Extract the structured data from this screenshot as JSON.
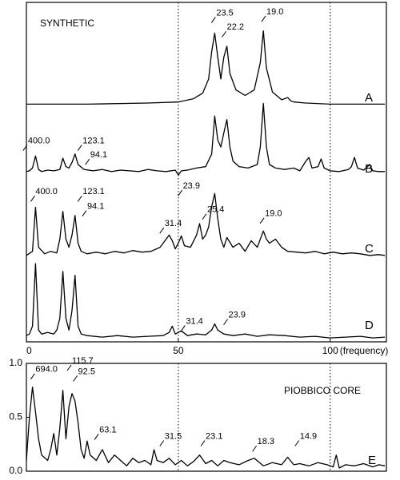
{
  "chart_data": [
    {
      "type": "line",
      "title": "SYNTHETIC",
      "panel_label": "A",
      "color": "#000000",
      "xlim": [
        0,
        118.5
      ],
      "ylim": [
        0,
        1
      ],
      "vlines": [
        50,
        100
      ],
      "x": [
        0,
        20,
        40,
        50,
        55,
        58,
        60,
        61,
        62,
        63,
        64,
        65,
        66,
        67,
        69,
        72,
        75,
        77,
        78,
        79,
        81,
        84,
        86,
        87,
        88,
        92,
        100,
        110,
        118
      ],
      "values": [
        0.07,
        0.07,
        0.08,
        0.09,
        0.12,
        0.17,
        0.3,
        0.55,
        0.72,
        0.5,
        0.3,
        0.5,
        0.6,
        0.35,
        0.2,
        0.15,
        0.2,
        0.45,
        0.74,
        0.4,
        0.18,
        0.11,
        0.13,
        0.1,
        0.09,
        0.08,
        0.07,
        0.07,
        0.07
      ],
      "annotations": [
        {
          "label": "23.5",
          "x": 62.5,
          "y": 0.88
        },
        {
          "label": "22.2",
          "x": 66,
          "y": 0.75
        },
        {
          "label": "19.0",
          "x": 79,
          "y": 0.89
        }
      ]
    },
    {
      "type": "line",
      "panel_label": "B",
      "color": "#000000",
      "xlim": [
        0,
        118.5
      ],
      "ylim": [
        0,
        1
      ],
      "vlines": [
        50,
        100
      ],
      "x": [
        0,
        1,
        2,
        3,
        4,
        5,
        7,
        9,
        11,
        12,
        13,
        14,
        15,
        16,
        17,
        19,
        22,
        25,
        28,
        31,
        34,
        37,
        40,
        43,
        46,
        49,
        50,
        51,
        53,
        56,
        59,
        61,
        62,
        63,
        64,
        65,
        66,
        67,
        68,
        70,
        73,
        76,
        77,
        78,
        79,
        80,
        82,
        85,
        88,
        90,
        92,
        93,
        94,
        96,
        97,
        98,
        100,
        103,
        106,
        107,
        108,
        109,
        111,
        113,
        114,
        116,
        118
      ],
      "values": [
        0.15,
        0.16,
        0.2,
        0.37,
        0.18,
        0.15,
        0.17,
        0.16,
        0.18,
        0.34,
        0.22,
        0.2,
        0.28,
        0.4,
        0.25,
        0.18,
        0.16,
        0.18,
        0.15,
        0.17,
        0.16,
        0.15,
        0.18,
        0.16,
        0.15,
        0.17,
        0.1,
        0.16,
        0.17,
        0.2,
        0.22,
        0.4,
        0.94,
        0.6,
        0.5,
        0.7,
        0.89,
        0.5,
        0.3,
        0.22,
        0.2,
        0.25,
        0.5,
        1.12,
        0.5,
        0.25,
        0.2,
        0.18,
        0.2,
        0.16,
        0.3,
        0.35,
        0.2,
        0.22,
        0.33,
        0.2,
        0.16,
        0.15,
        0.18,
        0.22,
        0.35,
        0.2,
        0.17,
        0.25,
        0.16,
        0.15,
        0.15
      ],
      "annotations": [
        {
          "label": "400.0",
          "x": 0.5,
          "y": 0.55
        },
        {
          "label": "123.1",
          "x": 18.5,
          "y": 0.55
        },
        {
          "label": "94.1",
          "x": 21,
          "y": 0.35
        }
      ]
    },
    {
      "type": "line",
      "panel_label": "C",
      "color": "#000000",
      "xlim": [
        0,
        118.5
      ],
      "ylim": [
        0,
        1
      ],
      "vlines": [
        50,
        100
      ],
      "x": [
        0,
        2,
        3,
        4,
        6,
        8,
        10,
        11,
        12,
        13,
        14,
        15,
        16,
        17,
        18,
        20,
        23,
        26,
        29,
        32,
        35,
        38,
        41,
        44,
        46,
        47,
        48,
        49,
        50,
        51,
        52,
        54,
        56,
        57,
        58,
        59,
        60,
        61,
        62,
        63,
        64,
        65,
        66,
        68,
        70,
        72,
        74,
        76,
        78,
        79,
        80,
        82,
        84,
        86,
        89,
        92,
        95,
        98,
        101,
        104,
        107,
        110,
        113,
        116,
        118
      ],
      "values": [
        0.1,
        0.15,
        0.69,
        0.2,
        0.12,
        0.15,
        0.13,
        0.3,
        0.64,
        0.3,
        0.2,
        0.35,
        0.59,
        0.25,
        0.15,
        0.12,
        0.14,
        0.12,
        0.15,
        0.13,
        0.16,
        0.14,
        0.15,
        0.2,
        0.3,
        0.35,
        0.28,
        0.18,
        0.25,
        0.34,
        0.22,
        0.2,
        0.35,
        0.49,
        0.3,
        0.35,
        0.45,
        0.7,
        0.86,
        0.55,
        0.3,
        0.2,
        0.32,
        0.2,
        0.25,
        0.15,
        0.28,
        0.2,
        0.4,
        0.3,
        0.25,
        0.3,
        0.2,
        0.15,
        0.14,
        0.13,
        0.15,
        0.12,
        0.14,
        0.12,
        0.13,
        0.12,
        0.1,
        0.11,
        0.1
      ],
      "annotations": [
        {
          "label": "400.0",
          "x": 3,
          "y": 0.85
        },
        {
          "label": "123.1",
          "x": 18.5,
          "y": 0.85
        },
        {
          "label": "94.1",
          "x": 20,
          "y": 0.67
        },
        {
          "label": "23.9",
          "x": 51.5,
          "y": 0.92
        },
        {
          "label": "25.4",
          "x": 59.5,
          "y": 0.63
        },
        {
          "label": "31.4",
          "x": 45.5,
          "y": 0.46
        },
        {
          "label": "19.0",
          "x": 78.5,
          "y": 0.58
        }
      ]
    },
    {
      "type": "line",
      "panel_label": "D",
      "color": "#000000",
      "xlim": [
        0,
        118.5
      ],
      "ylim": [
        0,
        1
      ],
      "vlines": [
        50,
        100
      ],
      "xticks": [
        0,
        50,
        100
      ],
      "xlabel": "(frequency)",
      "x": [
        0,
        1,
        2,
        3,
        4,
        5,
        7,
        9,
        10,
        11,
        12,
        13,
        14,
        15,
        16,
        17,
        18,
        20,
        25,
        30,
        35,
        40,
        45,
        47,
        48,
        49,
        51,
        53,
        56,
        59,
        61,
        62,
        63,
        65,
        68,
        72,
        76,
        80,
        85,
        90,
        95,
        100,
        105,
        110,
        114,
        118
      ],
      "values": [
        0.08,
        0.1,
        0.2,
        1.0,
        0.15,
        0.1,
        0.12,
        0.1,
        0.15,
        0.3,
        0.9,
        0.3,
        0.15,
        0.4,
        0.85,
        0.2,
        0.1,
        0.08,
        0.06,
        0.08,
        0.06,
        0.07,
        0.08,
        0.12,
        0.2,
        0.1,
        0.14,
        0.08,
        0.1,
        0.09,
        0.15,
        0.23,
        0.15,
        0.1,
        0.08,
        0.1,
        0.07,
        0.09,
        0.08,
        0.06,
        0.07,
        0.05,
        0.06,
        0.07,
        0.05,
        0.06
      ],
      "annotations": [
        {
          "label": "31.4",
          "x": 52.5,
          "y": 0.23
        },
        {
          "label": "23.9",
          "x": 66.5,
          "y": 0.31
        }
      ]
    },
    {
      "type": "line",
      "title": "PIOBBICO CORE",
      "panel_label": "E",
      "color": "#000000",
      "xlim": [
        0,
        118.5
      ],
      "ylim": [
        0,
        1
      ],
      "vlines": [
        50,
        100
      ],
      "yticks": [
        {
          "value": 0,
          "label": "0.0"
        },
        0.5,
        {
          "value": 1,
          "label": "1.0"
        }
      ],
      "x": [
        0,
        1,
        2,
        3,
        4,
        5,
        7,
        8,
        9,
        10,
        11,
        12,
        13,
        14,
        15,
        16,
        17,
        18,
        19,
        20,
        21,
        23,
        25,
        27,
        29,
        31,
        33,
        35,
        37,
        39,
        41,
        42,
        43,
        45,
        47,
        49,
        51,
        53,
        55,
        57,
        59,
        61,
        63,
        65,
        67,
        70,
        73,
        75,
        78,
        81,
        84,
        86,
        88,
        90,
        93,
        96,
        99,
        101,
        102,
        103,
        105,
        108,
        111,
        114,
        116,
        118
      ],
      "values": [
        0.1,
        0.5,
        0.78,
        0.55,
        0.3,
        0.15,
        0.1,
        0.2,
        0.35,
        0.15,
        0.4,
        0.75,
        0.3,
        0.6,
        0.72,
        0.65,
        0.45,
        0.2,
        0.12,
        0.28,
        0.15,
        0.1,
        0.2,
        0.08,
        0.15,
        0.1,
        0.05,
        0.12,
        0.08,
        0.1,
        0.06,
        0.2,
        0.1,
        0.08,
        0.12,
        0.06,
        0.1,
        0.05,
        0.09,
        0.15,
        0.07,
        0.1,
        0.05,
        0.1,
        0.08,
        0.06,
        0.1,
        0.12,
        0.05,
        0.08,
        0.06,
        0.13,
        0.06,
        0.07,
        0.05,
        0.08,
        0.06,
        0.04,
        0.15,
        0.03,
        0.06,
        0.05,
        0.07,
        0.04,
        0.06,
        0.05
      ],
      "annotations": [
        {
          "label": "694.0",
          "x": 3,
          "y": 0.92
        },
        {
          "label": "115.7",
          "x": 15,
          "y": 1.0
        },
        {
          "label": "92.5",
          "x": 17,
          "y": 0.9
        },
        {
          "label": "63.1",
          "x": 24,
          "y": 0.36
        },
        {
          "label": "31.5",
          "x": 45.5,
          "y": 0.3
        },
        {
          "label": "23.1",
          "x": 59,
          "y": 0.3
        },
        {
          "label": "18.3",
          "x": 76,
          "y": 0.25
        },
        {
          "label": "14.9",
          "x": 90,
          "y": 0.3
        }
      ]
    }
  ]
}
